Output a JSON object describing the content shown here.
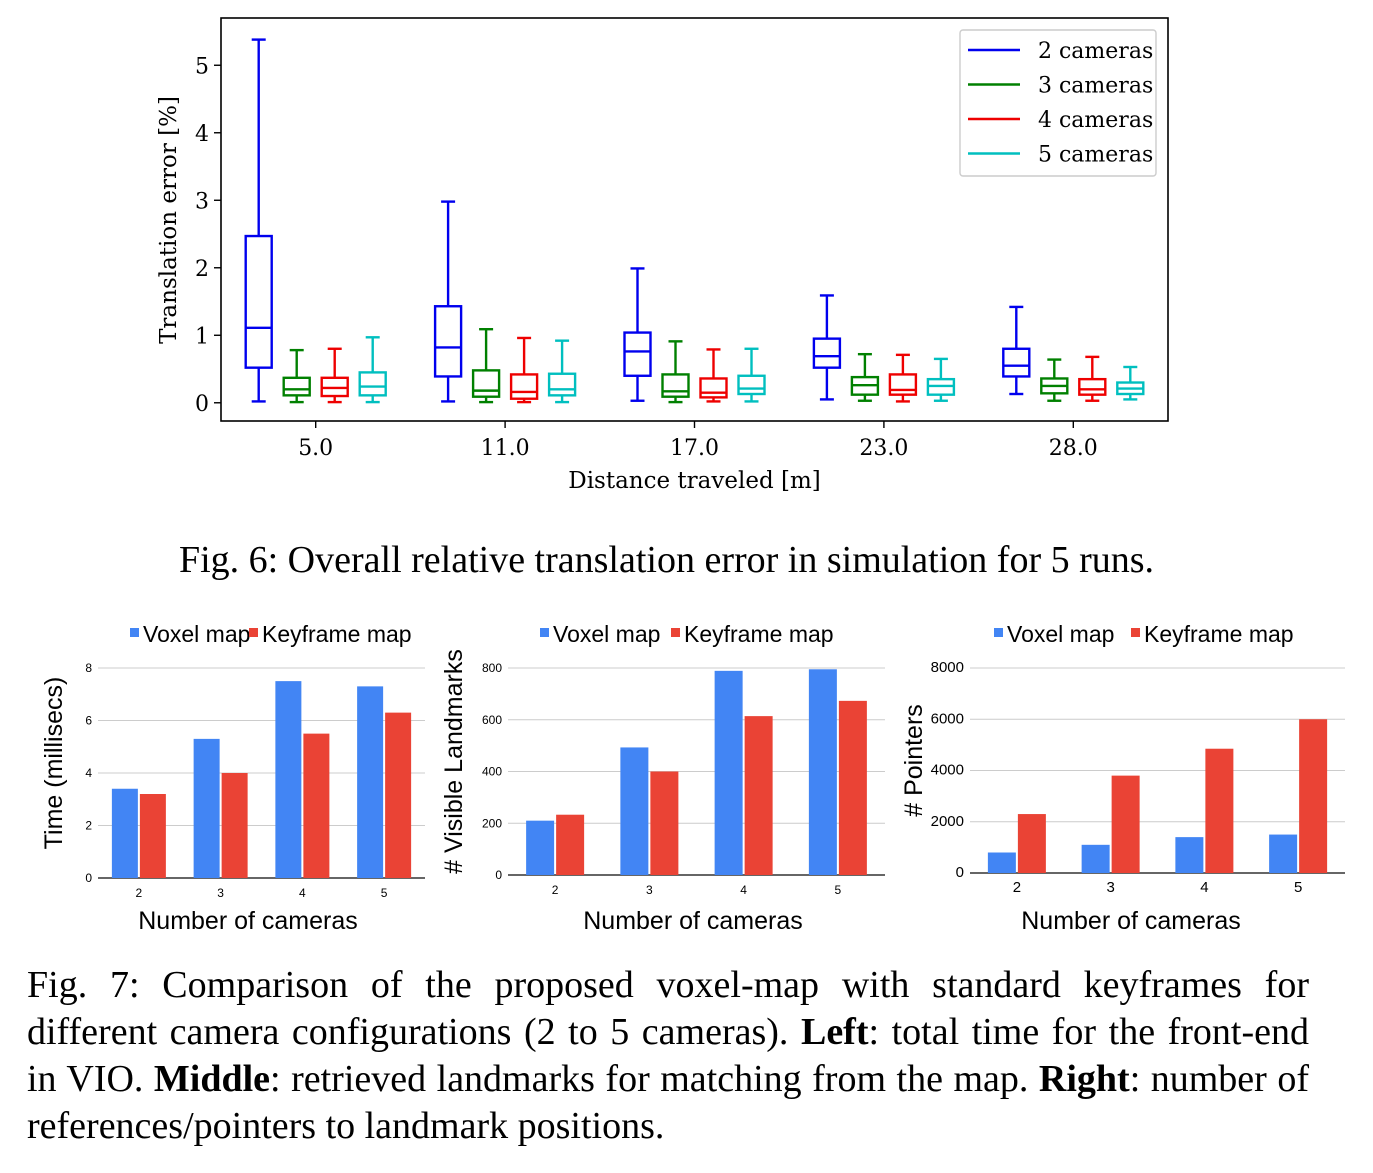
{
  "fig6": {
    "caption": "Fig. 6: Overall relative translation error in simulation for 5 runs.",
    "chart_data": {
      "type": "box",
      "xlabel": "Distance traveled [m]",
      "ylabel": "Translation error [%]",
      "categories": [
        "5.0",
        "11.0",
        "17.0",
        "23.0",
        "28.0"
      ],
      "y_ticks": [
        "0",
        "1",
        "2",
        "3",
        "4",
        "5"
      ],
      "ylim": [
        -0.27,
        5.7
      ],
      "legend_position": "top-right",
      "series": [
        {
          "name": "2 cameras",
          "color": "#0000ee",
          "boxes": [
            {
              "min": 0.02,
              "q1": 0.52,
              "median": 1.11,
              "q3": 2.47,
              "max": 5.38
            },
            {
              "min": 0.02,
              "q1": 0.39,
              "median": 0.82,
              "q3": 1.43,
              "max": 2.98
            },
            {
              "min": 0.03,
              "q1": 0.4,
              "median": 0.76,
              "q3": 1.04,
              "max": 1.99
            },
            {
              "min": 0.05,
              "q1": 0.52,
              "median": 0.69,
              "q3": 0.95,
              "max": 1.59
            },
            {
              "min": 0.13,
              "q1": 0.39,
              "median": 0.55,
              "q3": 0.8,
              "max": 1.42
            }
          ]
        },
        {
          "name": "3 cameras",
          "color": "#008000",
          "boxes": [
            {
              "min": 0.01,
              "q1": 0.11,
              "median": 0.2,
              "q3": 0.37,
              "max": 0.78
            },
            {
              "min": 0.01,
              "q1": 0.09,
              "median": 0.18,
              "q3": 0.48,
              "max": 1.09
            },
            {
              "min": 0.01,
              "q1": 0.09,
              "median": 0.17,
              "q3": 0.42,
              "max": 0.91
            },
            {
              "min": 0.03,
              "q1": 0.12,
              "median": 0.26,
              "q3": 0.38,
              "max": 0.72
            },
            {
              "min": 0.03,
              "q1": 0.14,
              "median": 0.25,
              "q3": 0.36,
              "max": 0.64
            }
          ]
        },
        {
          "name": "4 cameras",
          "color": "#ee0000",
          "boxes": [
            {
              "min": 0.01,
              "q1": 0.1,
              "median": 0.22,
              "q3": 0.37,
              "max": 0.8
            },
            {
              "min": 0.01,
              "q1": 0.06,
              "median": 0.16,
              "q3": 0.42,
              "max": 0.96
            },
            {
              "min": 0.02,
              "q1": 0.08,
              "median": 0.15,
              "q3": 0.36,
              "max": 0.79
            },
            {
              "min": 0.02,
              "q1": 0.12,
              "median": 0.19,
              "q3": 0.42,
              "max": 0.71
            },
            {
              "min": 0.03,
              "q1": 0.12,
              "median": 0.2,
              "q3": 0.35,
              "max": 0.68
            }
          ]
        },
        {
          "name": "5 cameras",
          "color": "#00bfbf",
          "boxes": [
            {
              "min": 0.01,
              "q1": 0.11,
              "median": 0.24,
              "q3": 0.45,
              "max": 0.97
            },
            {
              "min": 0.01,
              "q1": 0.11,
              "median": 0.2,
              "q3": 0.43,
              "max": 0.92
            },
            {
              "min": 0.02,
              "q1": 0.13,
              "median": 0.21,
              "q3": 0.4,
              "max": 0.8
            },
            {
              "min": 0.03,
              "q1": 0.12,
              "median": 0.25,
              "q3": 0.35,
              "max": 0.65
            },
            {
              "min": 0.05,
              "q1": 0.13,
              "median": 0.21,
              "q3": 0.3,
              "max": 0.53
            }
          ]
        }
      ]
    }
  },
  "fig7": {
    "caption": {
      "p1": "Fig. 7: Comparison of the proposed voxel-map with standard keyframes for different camera configurations (2 to 5 cameras). ",
      "b1": "Left",
      "p2": ": total time for the front-end in VIO. ",
      "b2": "Middle",
      "p3": ": retrieved landmarks for matching from the map. ",
      "b3": "Right",
      "p4": ": number of references/pointers to landmark positions."
    },
    "chart_data": [
      {
        "type": "bar",
        "categories": [
          "2",
          "3",
          "4",
          "5"
        ],
        "xlabel": "Number of cameras",
        "ylabel": "Time (millisecs)",
        "ylim": [
          0,
          8
        ],
        "y_ticks": [
          "0",
          "2",
          "4",
          "6",
          "8"
        ],
        "legend_position": "top",
        "grid": true,
        "series": [
          {
            "name": "Voxel map",
            "color": "#4285f4",
            "values": [
              3.4,
              5.3,
              7.5,
              7.3
            ]
          },
          {
            "name": "Keyframe map",
            "color": "#ea4335",
            "values": [
              3.2,
              4.0,
              5.5,
              6.3
            ]
          }
        ]
      },
      {
        "type": "bar",
        "categories": [
          "2",
          "3",
          "4",
          "5"
        ],
        "xlabel": "Number of cameras",
        "ylabel": "# Visible Landmarks",
        "ylim": [
          0,
          800
        ],
        "y_ticks": [
          "0",
          "200",
          "400",
          "600",
          "800"
        ],
        "legend_position": "top",
        "grid": true,
        "series": [
          {
            "name": "Voxel map",
            "color": "#4285f4",
            "values": [
              210,
              493,
              789,
              795
            ]
          },
          {
            "name": "Keyframe map",
            "color": "#ea4335",
            "values": [
              233,
              400,
              614,
              673
            ]
          }
        ]
      },
      {
        "type": "bar",
        "categories": [
          "2",
          "3",
          "4",
          "5"
        ],
        "xlabel": "Number of cameras",
        "ylabel": "# Pointers",
        "ylim": [
          0,
          8000
        ],
        "y_ticks": [
          "0",
          "2000",
          "4000",
          "6000",
          "8000"
        ],
        "legend_position": "top",
        "grid": true,
        "series": [
          {
            "name": "Voxel map",
            "color": "#4285f4",
            "values": [
              800,
              1100,
              1400,
              1500
            ]
          },
          {
            "name": "Keyframe map",
            "color": "#ea4335",
            "values": [
              2300,
              3800,
              4850,
              6000
            ]
          }
        ]
      }
    ]
  }
}
